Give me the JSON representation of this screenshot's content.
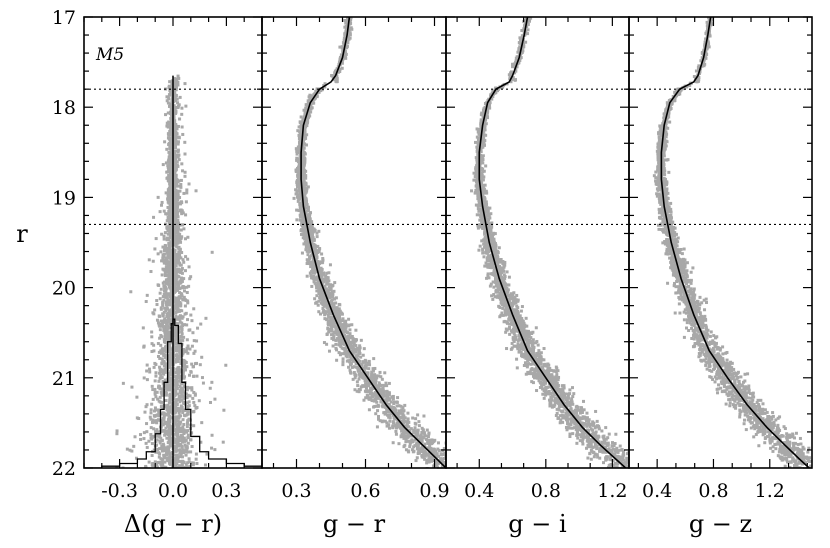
{
  "chart_data": [
    {
      "type": "scatter",
      "panel_label": "M5",
      "xlabel": "Δ(g − r)",
      "ylabel": "r",
      "xlim": [
        -0.5,
        0.5
      ],
      "ylim": [
        22,
        17
      ],
      "xticks": [
        "-0.3",
        "0.0",
        "0.3"
      ],
      "yticks": [
        "17",
        "18",
        "19",
        "20",
        "21",
        "22"
      ],
      "reference_lines_r": [
        17.8,
        19.3
      ],
      "ridge_line": {
        "x": [
          0,
          0
        ],
        "y": [
          17.65,
          22
        ]
      },
      "histogram": {
        "x": [
          -0.5,
          -0.4,
          -0.3,
          -0.2,
          -0.15,
          -0.1,
          -0.07,
          -0.05,
          -0.03,
          -0.01,
          0.0,
          0.01,
          0.03,
          0.05,
          0.07,
          0.1,
          0.15,
          0.2,
          0.3,
          0.4,
          0.5
        ],
        "r": [
          22.0,
          21.98,
          21.95,
          21.9,
          21.82,
          21.62,
          21.35,
          21.05,
          20.6,
          20.4,
          20.35,
          20.42,
          20.62,
          21.05,
          21.35,
          21.65,
          21.82,
          21.9,
          21.95,
          21.98,
          22.0
        ]
      }
    },
    {
      "type": "scatter",
      "xlabel": "g − r",
      "xlim": [
        0.15,
        0.95
      ],
      "ylim": [
        22,
        17
      ],
      "xticks": [
        "0.3",
        "0.6",
        "0.9"
      ],
      "reference_lines_r": [
        17.8,
        19.3
      ],
      "fiducial": {
        "x": [
          0.45,
          0.4,
          0.36,
          0.33,
          0.32,
          0.32,
          0.33,
          0.36,
          0.4,
          0.46,
          0.53,
          0.61,
          0.69,
          0.77,
          0.85,
          0.91,
          0.95
        ],
        "r": [
          17.72,
          17.8,
          17.95,
          18.2,
          18.5,
          18.8,
          19.1,
          19.5,
          19.9,
          20.3,
          20.7,
          21.0,
          21.3,
          21.55,
          21.75,
          21.9,
          22.0
        ]
      },
      "giant_branch": {
        "x": [
          0.47,
          0.5,
          0.52,
          0.53
        ],
        "r": [
          17.65,
          17.45,
          17.2,
          17.0
        ]
      }
    },
    {
      "type": "scatter",
      "xlabel": "g − i",
      "xlim": [
        0.2,
        1.3
      ],
      "ylim": [
        22,
        17
      ],
      "xticks": [
        "0.4",
        "0.8",
        "1.2"
      ],
      "reference_lines_r": [
        17.8,
        19.3
      ],
      "fiducial": {
        "x": [
          0.58,
          0.5,
          0.45,
          0.42,
          0.4,
          0.4,
          0.42,
          0.46,
          0.52,
          0.6,
          0.69,
          0.8,
          0.91,
          1.02,
          1.13,
          1.22,
          1.28
        ],
        "r": [
          17.72,
          17.8,
          17.95,
          18.2,
          18.5,
          18.8,
          19.1,
          19.5,
          19.9,
          20.3,
          20.7,
          21.0,
          21.3,
          21.55,
          21.75,
          21.9,
          22.0
        ]
      },
      "giant_branch": {
        "x": [
          0.6,
          0.64,
          0.67,
          0.69
        ],
        "r": [
          17.65,
          17.45,
          17.2,
          17.0
        ]
      }
    },
    {
      "type": "scatter",
      "xlabel": "g − z",
      "xlim": [
        0.2,
        1.5
      ],
      "ylim": [
        22,
        17
      ],
      "xticks": [
        "0.4",
        "0.8",
        "1.2"
      ],
      "reference_lines_r": [
        17.8,
        19.3
      ],
      "fiducial": {
        "x": [
          0.66,
          0.56,
          0.49,
          0.45,
          0.43,
          0.43,
          0.45,
          0.5,
          0.57,
          0.66,
          0.77,
          0.9,
          1.04,
          1.18,
          1.31,
          1.41,
          1.48
        ],
        "r": [
          17.72,
          17.8,
          17.95,
          18.2,
          18.5,
          18.8,
          19.1,
          19.5,
          19.9,
          20.3,
          20.7,
          21.0,
          21.3,
          21.55,
          21.75,
          21.9,
          22.0
        ]
      },
      "giant_branch": {
        "x": [
          0.69,
          0.73,
          0.76,
          0.78
        ],
        "r": [
          17.65,
          17.45,
          17.2,
          17.0
        ]
      }
    }
  ],
  "style": {
    "point_color": "#a8a8a8",
    "line_color": "#000000",
    "reference_line_style": "dotted"
  }
}
